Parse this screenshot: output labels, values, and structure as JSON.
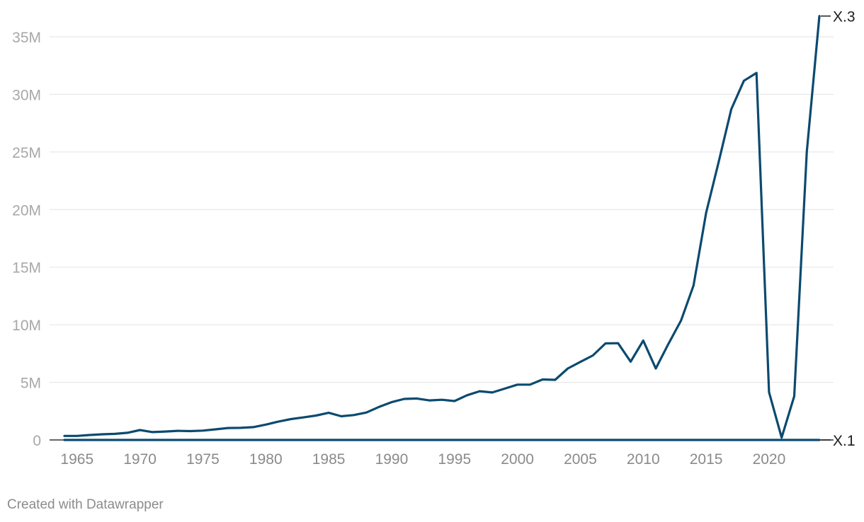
{
  "chart_data": {
    "type": "line",
    "title": "",
    "xlabel": "",
    "ylabel": "",
    "grid": true,
    "xlim": [
      1964,
      2024
    ],
    "ylim": [
      0,
      37000000
    ],
    "yticks": [
      {
        "value": 35000000,
        "label": "35M"
      },
      {
        "value": 30000000,
        "label": "30M"
      },
      {
        "value": 25000000,
        "label": "25M"
      },
      {
        "value": 20000000,
        "label": "20M"
      },
      {
        "value": 15000000,
        "label": "15M"
      },
      {
        "value": 10000000,
        "label": "10M"
      },
      {
        "value": 5000000,
        "label": "5M"
      },
      {
        "value": 0,
        "label": "0"
      }
    ],
    "xticks": [
      {
        "value": 1965,
        "label": "1965"
      },
      {
        "value": 1970,
        "label": "1970"
      },
      {
        "value": 1975,
        "label": "1975"
      },
      {
        "value": 1980,
        "label": "1980"
      },
      {
        "value": 1985,
        "label": "1985"
      },
      {
        "value": 1990,
        "label": "1990"
      },
      {
        "value": 1995,
        "label": "1995"
      },
      {
        "value": 2000,
        "label": "2000"
      },
      {
        "value": 2005,
        "label": "2005"
      },
      {
        "value": 2010,
        "label": "2010"
      },
      {
        "value": 2015,
        "label": "2015"
      },
      {
        "value": 2020,
        "label": "2020"
      }
    ],
    "series": [
      {
        "name": "X.3",
        "color": "#0b4a6f",
        "x": [
          1964,
          1965,
          1966,
          1967,
          1968,
          1969,
          1970,
          1971,
          1972,
          1973,
          1974,
          1975,
          1976,
          1977,
          1978,
          1979,
          1980,
          1981,
          1982,
          1983,
          1984,
          1985,
          1986,
          1987,
          1988,
          1989,
          1990,
          1991,
          1992,
          1993,
          1994,
          1995,
          1996,
          1997,
          1998,
          1999,
          2000,
          2001,
          2002,
          2003,
          2004,
          2005,
          2006,
          2007,
          2008,
          2009,
          2010,
          2011,
          2012,
          2013,
          2014,
          2015,
          2016,
          2017,
          2018,
          2019,
          2020,
          2021,
          2022,
          2023,
          2024
        ],
        "values": [
          350000,
          350000,
          430000,
          490000,
          530000,
          620000,
          860000,
          680000,
          730000,
          790000,
          770000,
          810000,
          920000,
          1040000,
          1050000,
          1110000,
          1330000,
          1590000,
          1810000,
          1960000,
          2120000,
          2360000,
          2060000,
          2160000,
          2380000,
          2870000,
          3280000,
          3560000,
          3600000,
          3430000,
          3490000,
          3380000,
          3880000,
          4230000,
          4120000,
          4460000,
          4800000,
          4800000,
          5250000,
          5220000,
          6200000,
          6770000,
          7340000,
          8380000,
          8400000,
          6800000,
          8630000,
          6200000,
          8340000,
          10360000,
          13410000,
          19730000,
          24160000,
          28710000,
          31180000,
          31860000,
          4150000,
          200000,
          3800000,
          25000000,
          36800000
        ]
      },
      {
        "name": "X.1",
        "color": "#0b4a6f",
        "x": [
          1964,
          1965,
          1966,
          1967,
          1968,
          1969,
          1970,
          1971,
          1972,
          1973,
          1974,
          1975,
          1976,
          1977,
          1978,
          1979,
          1980,
          1981,
          1982,
          1983,
          1984,
          1985,
          1986,
          1987,
          1988,
          1989,
          1990,
          1991,
          1992,
          1993,
          1994,
          1995,
          1996,
          1997,
          1998,
          1999,
          2000,
          2001,
          2002,
          2003,
          2004,
          2005,
          2006,
          2007,
          2008,
          2009,
          2010,
          2011,
          2012,
          2013,
          2014,
          2015,
          2016,
          2017,
          2018,
          2019,
          2020,
          2021,
          2022,
          2023,
          2024
        ],
        "values": [
          0,
          0,
          0,
          0,
          0,
          0,
          0,
          0,
          0,
          0,
          0,
          0,
          0,
          0,
          0,
          0,
          0,
          0,
          0,
          0,
          0,
          0,
          0,
          0,
          0,
          0,
          0,
          0,
          0,
          0,
          0,
          0,
          0,
          0,
          0,
          0,
          0,
          0,
          0,
          0,
          0,
          0,
          0,
          0,
          0,
          0,
          0,
          0,
          0,
          0,
          0,
          0,
          0,
          0,
          0,
          0,
          0,
          0,
          0,
          0,
          0
        ]
      }
    ]
  },
  "footer": {
    "credit": "Created with Datawrapper"
  }
}
